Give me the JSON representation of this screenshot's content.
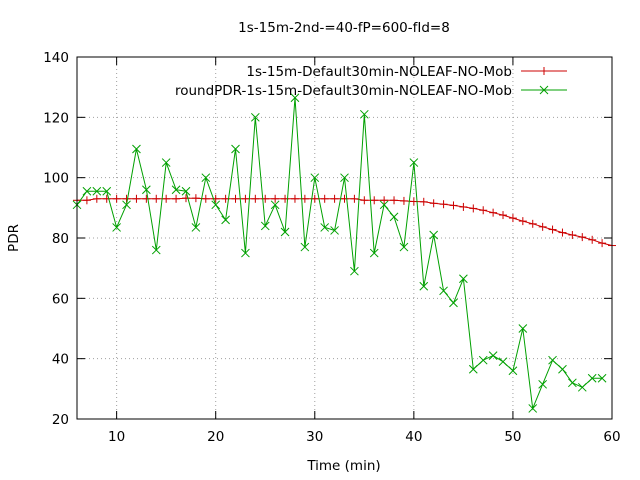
{
  "chart_data": {
    "type": "line",
    "title": "1s-15m-2nd-=40-fP=600-fId=8",
    "xlabel": "Time (min)",
    "ylabel": "PDR",
    "xlim": [
      6,
      60
    ],
    "ylim": [
      20,
      140
    ],
    "xticks": [
      10,
      20,
      30,
      40,
      50,
      60
    ],
    "yticks": [
      20,
      40,
      60,
      80,
      100,
      120,
      140
    ],
    "grid": true,
    "legend": "top-right",
    "series": [
      {
        "name": "1s-15m-Default30min-NOLEAF-NO-Mob",
        "color": "#cc0000",
        "marker": "plus",
        "x": [
          6,
          7,
          8,
          9,
          10,
          11,
          12,
          13,
          14,
          15,
          16,
          17,
          18,
          19,
          20,
          21,
          22,
          23,
          24,
          25,
          26,
          27,
          28,
          29,
          30,
          31,
          32,
          33,
          34,
          35,
          36,
          37,
          38,
          39,
          40,
          41,
          42,
          43,
          44,
          45,
          46,
          47,
          48,
          49,
          50,
          51,
          52,
          53,
          54,
          55,
          56,
          57,
          58,
          59,
          60
        ],
        "values": [
          92.5,
          92.5,
          93,
          93,
          93,
          93,
          93,
          93,
          93,
          93,
          93,
          93.2,
          93.2,
          93,
          93,
          93,
          93,
          93,
          93,
          93,
          93,
          93,
          93,
          93,
          93,
          93,
          93,
          93,
          93,
          92.5,
          92.5,
          92.5,
          92.5,
          92.3,
          92.1,
          92,
          91.5,
          91.2,
          90.8,
          90.3,
          89.8,
          89.2,
          88.4,
          87.6,
          86.6,
          85.6,
          84.7,
          83.7,
          82.8,
          81.8,
          81,
          80.3,
          79.4,
          78.3,
          77.5
        ]
      },
      {
        "name": "roundPDR-1s-15m-Default30min-NOLEAF-NO-Mob",
        "color": "#00a000",
        "marker": "cross",
        "x": [
          6,
          7,
          8,
          9,
          10,
          11,
          12,
          13,
          14,
          15,
          16,
          17,
          18,
          19,
          20,
          21,
          22,
          23,
          24,
          25,
          26,
          27,
          28,
          29,
          30,
          31,
          32,
          33,
          34,
          35,
          36,
          37,
          38,
          39,
          40,
          41,
          42,
          43,
          44,
          45,
          46,
          47,
          48,
          49,
          50,
          51,
          52,
          53,
          54,
          55,
          56,
          57,
          58,
          59
        ],
        "values": [
          91,
          95.5,
          95.5,
          95.5,
          83.5,
          91,
          109.5,
          96,
          76,
          105,
          96,
          95.5,
          83.5,
          100,
          91,
          86,
          109.5,
          75,
          120,
          84,
          91,
          82,
          126.5,
          77,
          100,
          83.5,
          82.5,
          100,
          69,
          121,
          75,
          91,
          87,
          77,
          105,
          64,
          81,
          62.5,
          58.5,
          66.5,
          36.5,
          39.5,
          41,
          39,
          36,
          50,
          23.5,
          31.5,
          39.5,
          36.5,
          32,
          30.5,
          33.5,
          33.5
        ]
      }
    ]
  }
}
